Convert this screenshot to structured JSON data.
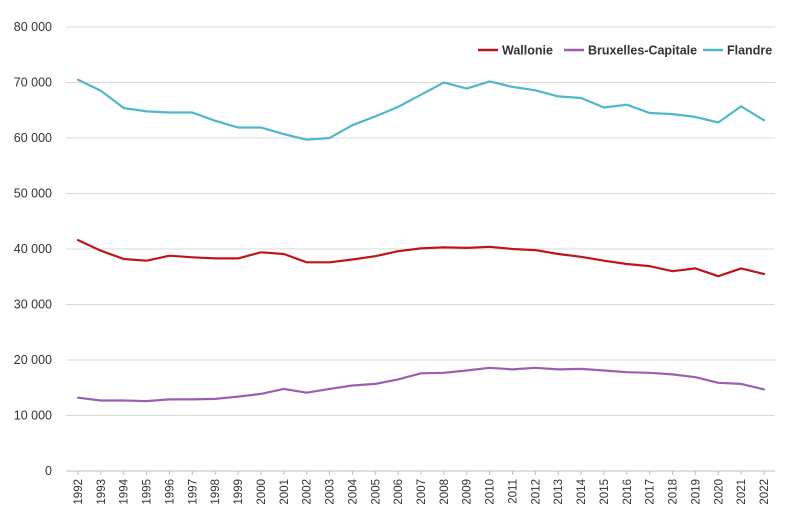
{
  "chart_data": {
    "type": "line",
    "title": "",
    "xlabel": "",
    "ylabel": "",
    "x": [
      "1992",
      "1993",
      "1994",
      "1995",
      "1996",
      "1997",
      "1998",
      "1999",
      "2000",
      "2001",
      "2002",
      "2003",
      "2004",
      "2005",
      "2006",
      "2007",
      "2008",
      "2009",
      "2010",
      "2011",
      "2012",
      "2013",
      "2014",
      "2015",
      "2016",
      "2017",
      "2018",
      "2019",
      "2020",
      "2021",
      "2022"
    ],
    "ylim": [
      0,
      80000
    ],
    "yticks": [
      0,
      10000,
      20000,
      30000,
      40000,
      50000,
      60000,
      70000,
      80000
    ],
    "ytick_labels": [
      "0",
      "10 000",
      "20 000",
      "30 000",
      "40 000",
      "50 000",
      "60 000",
      "70 000",
      "80 000"
    ],
    "grid": "horizontal",
    "legend_position": "top-right",
    "series": [
      {
        "name": "Wallonie",
        "color": "#c0141c",
        "values": [
          41600,
          39700,
          38200,
          37900,
          38800,
          38500,
          38300,
          38300,
          39400,
          39100,
          37600,
          37600,
          38100,
          38700,
          39600,
          40100,
          40300,
          40200,
          40400,
          40000,
          39800,
          39100,
          38600,
          37900,
          37300,
          36900,
          36000,
          36500,
          35100,
          36500,
          35500
        ]
      },
      {
        "name": "Bruxelles-Capitale",
        "color": "#9b5fb0",
        "values": [
          13200,
          12700,
          12700,
          12600,
          12900,
          12900,
          13000,
          13400,
          13900,
          14800,
          14100,
          14800,
          15400,
          15700,
          16500,
          17600,
          17700,
          18100,
          18600,
          18300,
          18600,
          18300,
          18400,
          18100,
          17800,
          17700,
          17400,
          16900,
          15900,
          15700,
          14700
        ]
      },
      {
        "name": "Flandre",
        "color": "#4fb8c8",
        "values": [
          70500,
          68500,
          65400,
          64800,
          64600,
          64600,
          63100,
          61900,
          61900,
          60700,
          59700,
          60000,
          62300,
          63900,
          65600,
          67800,
          70000,
          68900,
          70200,
          69200,
          68600,
          67500,
          67200,
          65500,
          66000,
          64500,
          64300,
          63800,
          62800,
          65700,
          63200
        ]
      }
    ]
  }
}
